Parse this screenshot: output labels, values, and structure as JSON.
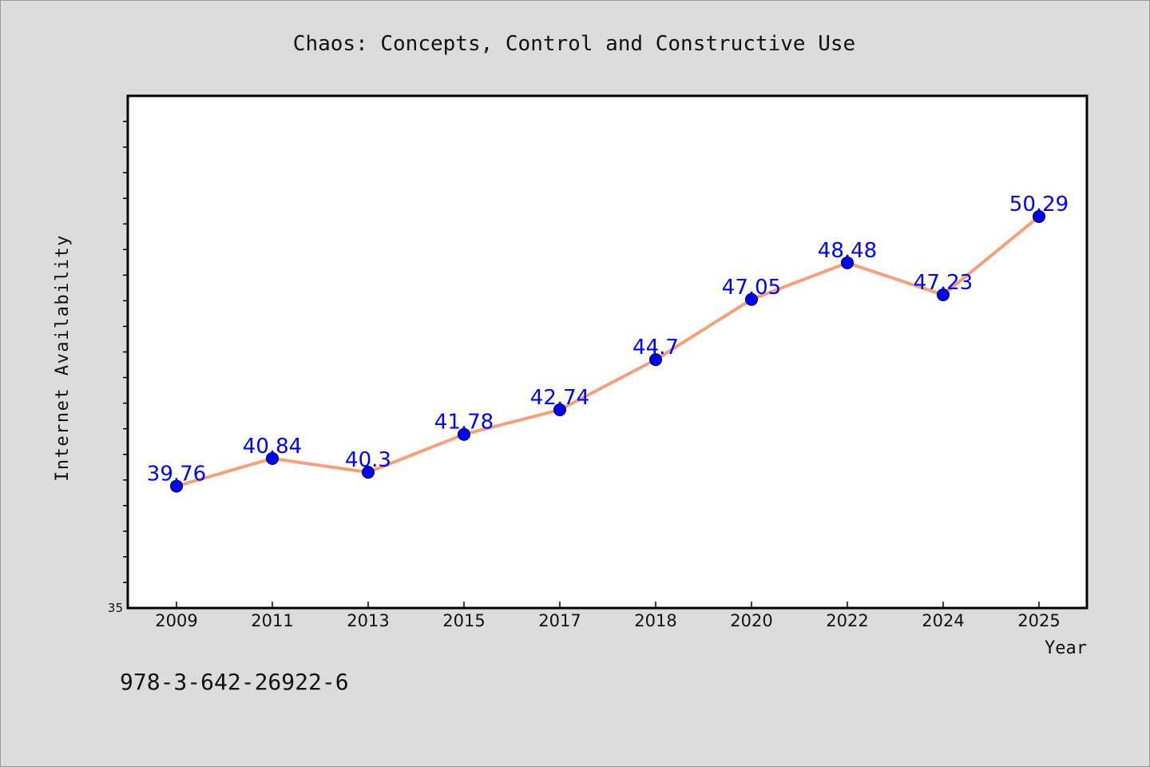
{
  "chart_data": {
    "type": "line",
    "title": "Chaos: Concepts, Control and Constructive Use",
    "xlabel": "Year",
    "ylabel": "Internet Availability",
    "categories": [
      "2009",
      "2011",
      "2013",
      "2015",
      "2017",
      "2018",
      "2020",
      "2022",
      "2024",
      "2025"
    ],
    "series": [
      {
        "values": [
          39.76,
          40.84,
          40.3,
          41.78,
          42.74,
          44.7,
          47.05,
          48.48,
          47.23,
          50.29
        ],
        "line_color": "#f4a07a",
        "marker_color": "#0000ff",
        "label_color": "#0000ff"
      }
    ],
    "ylim": [
      35,
      55
    ],
    "y_tick_labels": [
      "35"
    ],
    "grid": false,
    "legend": "none"
  },
  "footer": {
    "text": "978-3-642-26922-6"
  }
}
